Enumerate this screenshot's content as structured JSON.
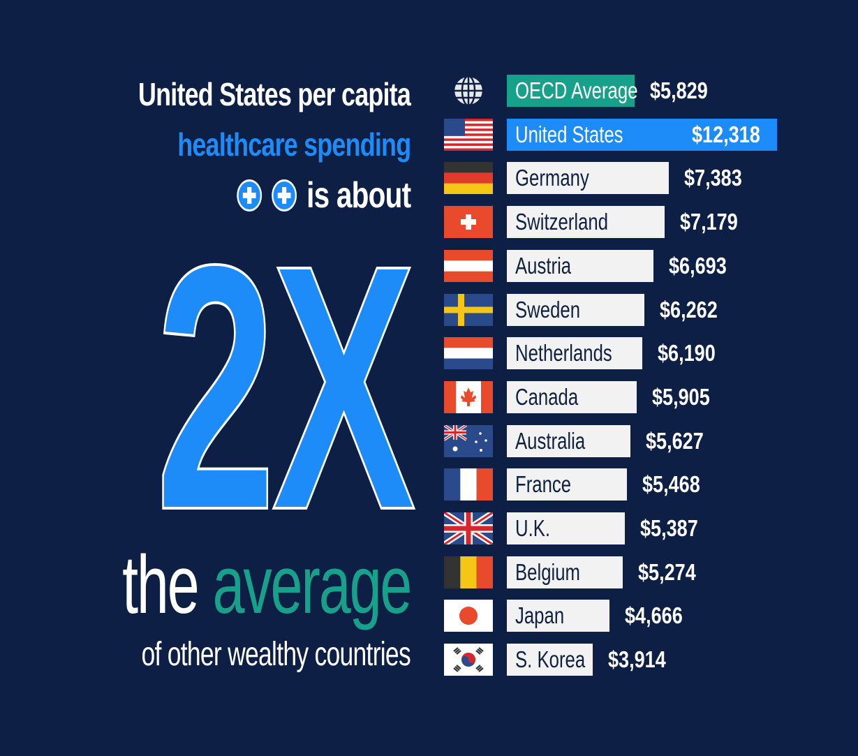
{
  "headline": {
    "line1": "United States per capita",
    "line2": "healthcare spending",
    "line3": "is about",
    "big": "2X",
    "line5_a": "the",
    "line5_b": "average",
    "line6": "of other wealthy countries"
  },
  "colors": {
    "background": "#0d1f45",
    "accent_blue": "#1d8cf8",
    "accent_teal": "#17a08a",
    "bar_default": "#f2f2f2"
  },
  "chart_data": {
    "type": "bar",
    "orientation": "horizontal",
    "title": "United States per capita healthcare spending",
    "xlabel": "",
    "ylabel": "",
    "xlim": [
      0,
      12318
    ],
    "categories": [
      "OECD Average",
      "United States",
      "Germany",
      "Switzerland",
      "Austria",
      "Sweden",
      "Netherlands",
      "Canada",
      "Australia",
      "France",
      "U.K.",
      "Belgium",
      "Japan",
      "S. Korea"
    ],
    "values": [
      5829,
      12318,
      7383,
      7179,
      6693,
      6262,
      6190,
      5905,
      5627,
      5468,
      5387,
      5274,
      4666,
      3914
    ],
    "value_labels": [
      "$5,829",
      "$12,318",
      "$7,383",
      "$7,179",
      "$6,693",
      "$6,262",
      "$6,190",
      "$5,905",
      "$5,627",
      "$5,468",
      "$5,387",
      "$5,274",
      "$4,666",
      "$3,914"
    ],
    "flags": [
      "globe-icon",
      "flag-united-states",
      "flag-germany",
      "flag-switzerland",
      "flag-austria",
      "flag-sweden",
      "flag-netherlands",
      "flag-canada",
      "flag-australia",
      "flag-france",
      "flag-uk",
      "flag-belgium",
      "flag-japan",
      "flag-south-korea"
    ],
    "highlight": {
      "OECD Average": "#17a08a",
      "United States": "#1d8cf8"
    }
  }
}
